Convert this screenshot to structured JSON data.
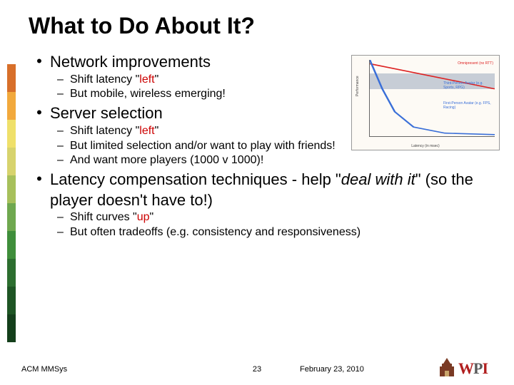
{
  "title": "What to Do About It?",
  "stripe_colors": [
    "#d86f2a",
    "#f2a93c",
    "#efe06a",
    "#d7d36d",
    "#a7c05b",
    "#6fa84f",
    "#3f8e3b",
    "#2c6e2f",
    "#1e5524",
    "#143f1b"
  ],
  "bullets": [
    {
      "text": "Network improvements",
      "sub": [
        {
          "pre": "Shift latency \"",
          "red": "left",
          "post": "\""
        },
        {
          "pre": "But mobile, wireless emerging!",
          "red": "",
          "post": ""
        }
      ]
    },
    {
      "text": "Server selection",
      "sub": [
        {
          "pre": "Shift latency \"",
          "red": "left",
          "post": "\""
        },
        {
          "pre": "But limited selection and/or want to play with friends!",
          "red": "",
          "post": ""
        },
        {
          "pre": "And want more players (1000 v 1000)!",
          "red": "",
          "post": ""
        }
      ]
    },
    {
      "text": "Latency compensation techniques",
      "tail_plain": " - help \"",
      "tail_italic": "deal with it",
      "tail_after": "\" (so the player doesn't have to!)",
      "sub": [
        {
          "pre": "Shift curves \"",
          "red": "up",
          "post": "\""
        },
        {
          "pre": "But often tradeoffs (e.g. consistency and responsiveness)",
          "red": "",
          "post": ""
        }
      ]
    }
  ],
  "chart": {
    "type": "line",
    "background_color": "#fdfaf5",
    "band_color": "#c7cdd6",
    "series": [
      {
        "label": "Omnipresent (no RTT)",
        "color": "#dd2222",
        "points": [
          [
            0,
            0.95
          ],
          [
            2000,
            0.62
          ]
        ]
      },
      {
        "label": "Third-Person Avatar (e.g. Sports, RPG)",
        "color": "#3a6fd8",
        "label_color": "#3a6fd8"
      },
      {
        "label": "First-Person Avatar (e.g. FPS, Racing)",
        "color": "#3a6fd8",
        "points": [
          [
            0,
            1.0
          ],
          [
            200,
            0.62
          ],
          [
            400,
            0.32
          ],
          [
            700,
            0.12
          ],
          [
            1200,
            0.04
          ],
          [
            2000,
            0.02
          ]
        ]
      }
    ],
    "ylabel": "Performance",
    "xlabel": "Latency (in msec)",
    "xlim": [
      0,
      2000
    ],
    "ylim": [
      0,
      1
    ],
    "xtick_step": 500,
    "ytick_step": 0.5,
    "label_fontsize": 5
  },
  "footer": {
    "left": "ACM MMSys",
    "page": "23",
    "date": "February 23, 2010"
  },
  "logo": {
    "text": "WPI",
    "colors": {
      "W": "#b11f1f",
      "P": "#5a5a5a",
      "I": "#b11f1f"
    },
    "building_color": "#7a3a24"
  }
}
